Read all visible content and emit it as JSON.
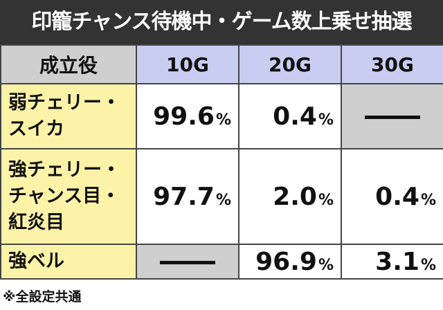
{
  "title": "印籠チャンス待機中・ゲーム数上乗せ抽選",
  "table": {
    "header": {
      "role": "成立役",
      "columns": [
        "10G",
        "20G",
        "30G"
      ]
    },
    "rows": [
      {
        "role_lines": [
          "弱チェリー・",
          "スイカ"
        ],
        "cells": [
          {
            "value": "99.6",
            "unit": "%"
          },
          {
            "value": "0.4",
            "unit": "%"
          },
          null
        ]
      },
      {
        "role_lines": [
          "強チェリー・",
          "チャンス目・",
          "紅炎目"
        ],
        "cells": [
          {
            "value": "97.7",
            "unit": "%"
          },
          {
            "value": "2.0",
            "unit": "%"
          },
          {
            "value": "0.4",
            "unit": "%"
          }
        ]
      },
      {
        "role_lines": [
          "強ベル"
        ],
        "cells": [
          null,
          {
            "value": "96.9",
            "unit": "%"
          },
          {
            "value": "3.1",
            "unit": "%"
          }
        ]
      }
    ]
  },
  "footnote": "※全設定共通"
}
